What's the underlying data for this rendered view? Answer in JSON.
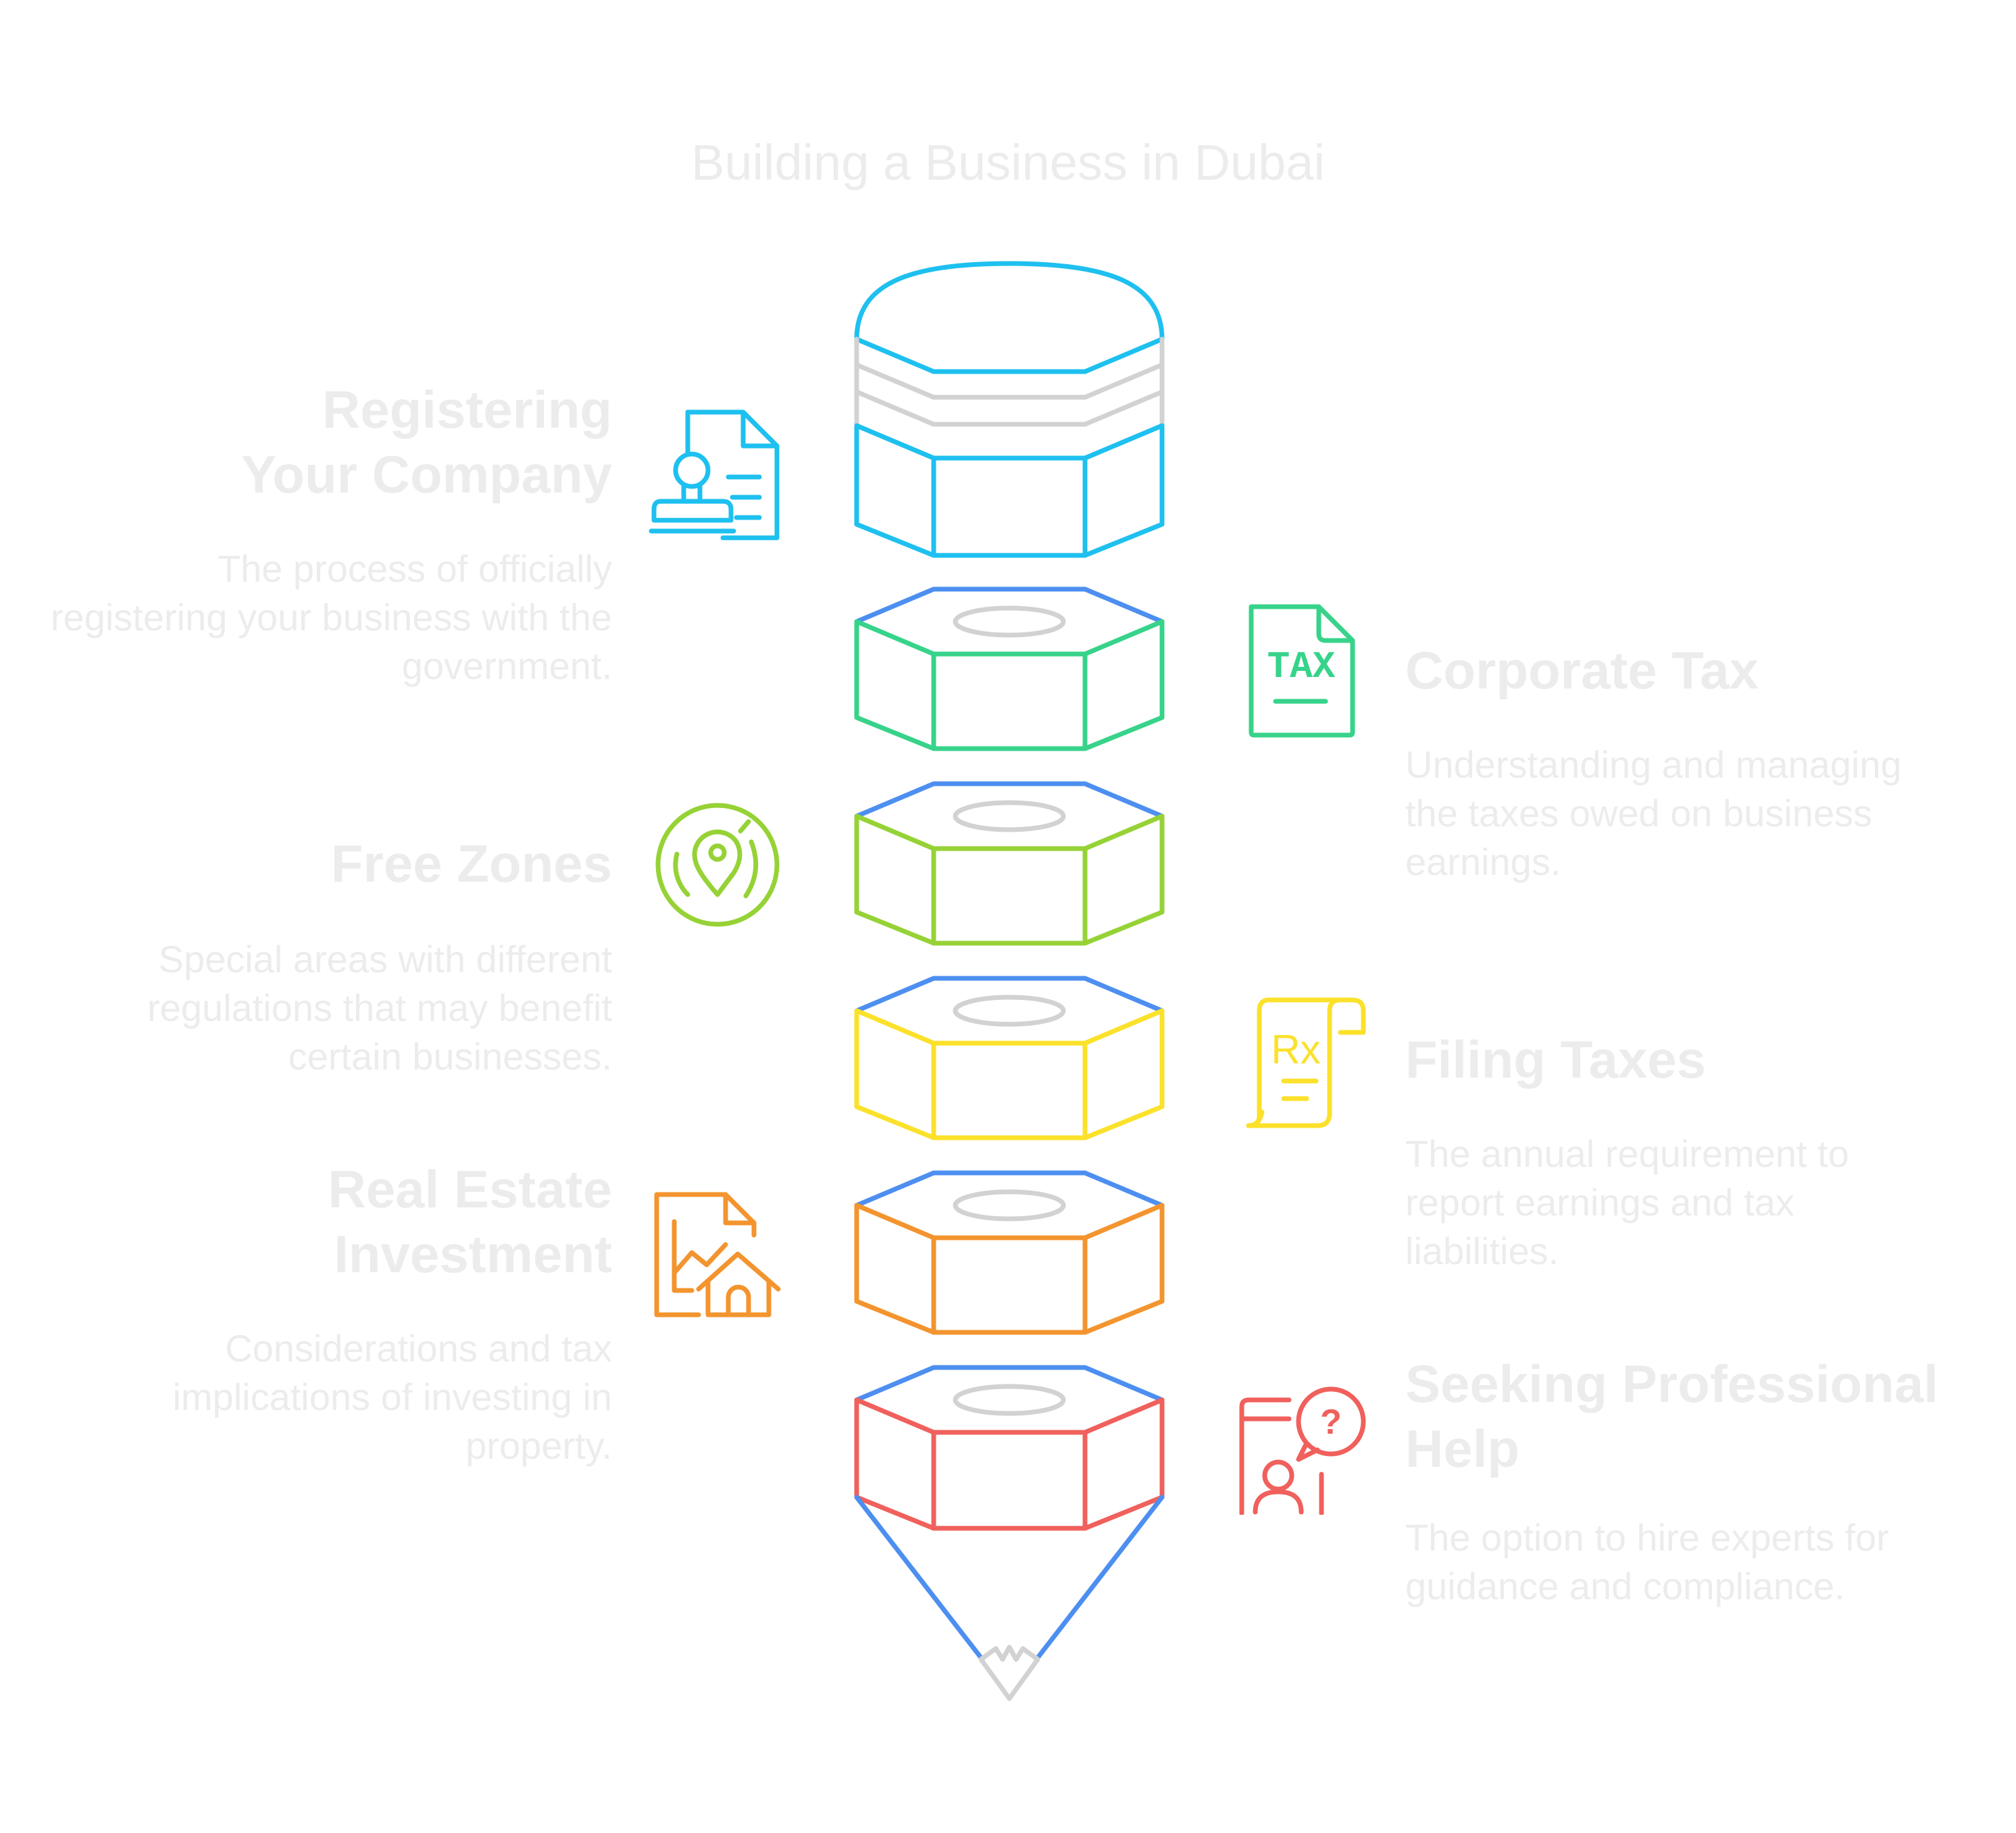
{
  "title": "Building a Business in Dubai",
  "colors": {
    "cyan": "#1ec0ef",
    "green": "#37d38a",
    "lime": "#96d236",
    "yellow": "#fbe12a",
    "orange": "#f3942f",
    "red": "#f0605c",
    "blue": "#4d8ff0",
    "gray": "#d2d2d2"
  },
  "sections": [
    {
      "heading": "Registering Your Company",
      "desc": "The process of officially registering your business with the government.",
      "icon": "company-registration-icon"
    },
    {
      "heading": "Corporate Tax",
      "desc": "Understanding and managing the taxes owed on business earnings.",
      "icon": "tax-document-icon",
      "icon_text": "TAX"
    },
    {
      "heading": "Free Zones",
      "desc": "Special areas with different regulations that may benefit certain businesses.",
      "icon": "map-pin-icon"
    },
    {
      "heading": "Filing Taxes",
      "desc": "The annual requirement to report earnings and tax liabilities.",
      "icon": "receipt-scroll-icon",
      "icon_text": "Rx"
    },
    {
      "heading": "Real Estate Investment",
      "desc": "Considerations and tax implications of investing in property.",
      "icon": "property-investment-icon"
    },
    {
      "heading": "Seeking Professional Help",
      "desc": "The option to hire experts for guidance and compliance.",
      "icon": "expert-help-icon",
      "icon_text": "?"
    }
  ]
}
